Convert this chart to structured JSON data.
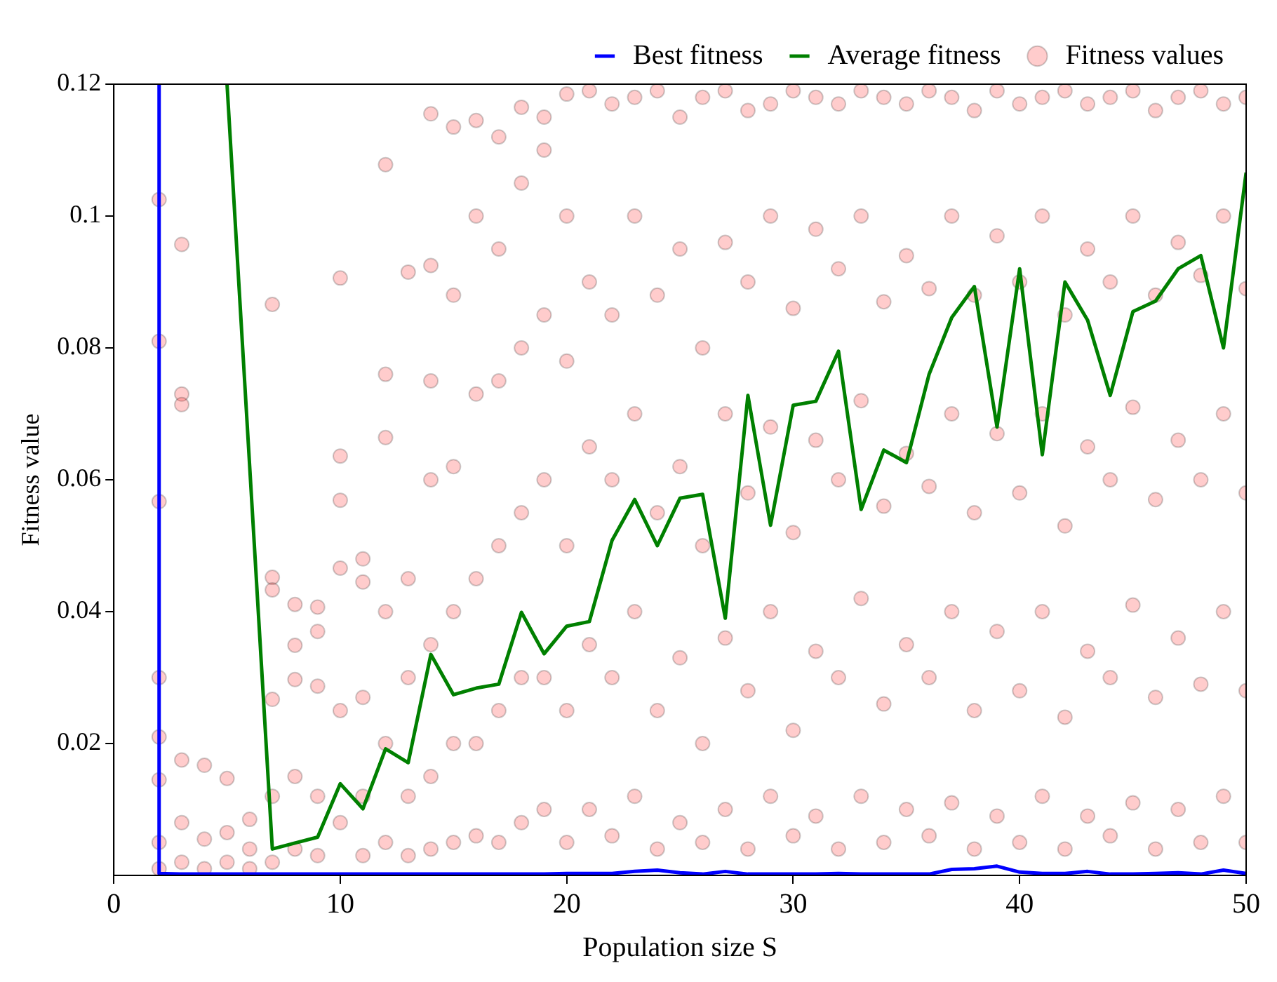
{
  "chart_data": {
    "type": "scatter",
    "xlabel": "Population size S",
    "ylabel": "Fitness value",
    "xlim": [
      0,
      50
    ],
    "ylim": [
      0,
      0.12
    ],
    "xticks": [
      0,
      10,
      20,
      30,
      40,
      50
    ],
    "yticks": [
      0.02,
      0.04,
      0.06,
      0.08,
      0.1,
      0.12
    ],
    "grid": false,
    "legend": "top right",
    "series": [
      {
        "name": "Best fitness",
        "type": "line",
        "color": "#0000ff",
        "marker": "none",
        "x": [
          2,
          2,
          3,
          4,
          5,
          6,
          7,
          8,
          9,
          10,
          11,
          12,
          13,
          14,
          15,
          16,
          17,
          18,
          19,
          20,
          21,
          22,
          23,
          24,
          25,
          26,
          27,
          28,
          29,
          30,
          31,
          32,
          33,
          34,
          35,
          36,
          37,
          38,
          39,
          40,
          41,
          42,
          43,
          44,
          45,
          46,
          47,
          48,
          49,
          50
        ],
        "values": [
          0.12,
          0.0003,
          0.0002,
          0.0002,
          0.0002,
          0.0002,
          0.0002,
          0.0002,
          0.0002,
          0.0002,
          0.0002,
          0.0002,
          0.0002,
          0.0002,
          0.0002,
          0.0002,
          0.0002,
          0.0002,
          0.0002,
          0.0003,
          0.0003,
          0.0003,
          0.0006,
          0.0008,
          0.0004,
          0.0002,
          0.0006,
          0.0002,
          0.0002,
          0.0002,
          0.0002,
          0.0003,
          0.0002,
          0.0002,
          0.0002,
          0.0002,
          0.0009,
          0.001,
          0.0014,
          0.0005,
          0.0003,
          0.0003,
          0.0006,
          0.0002,
          0.0002,
          0.0003,
          0.0004,
          0.0002,
          0.0008,
          0.0003
        ]
      },
      {
        "name": "Average fitness",
        "type": "line",
        "color": "#008000",
        "marker": "none",
        "x": [
          5,
          7,
          8,
          9,
          10,
          11,
          12,
          13,
          14,
          15,
          16,
          17,
          18,
          19,
          20,
          21,
          22,
          23,
          24,
          25,
          26,
          27,
          28,
          29,
          30,
          31,
          32,
          33,
          34,
          35,
          36,
          37,
          38,
          39,
          40,
          41,
          42,
          43,
          44,
          45,
          46,
          47,
          48,
          49,
          50
        ],
        "values": [
          0.12,
          0.004,
          0.0049,
          0.0058,
          0.0139,
          0.0101,
          0.0192,
          0.0171,
          0.0335,
          0.0274,
          0.0284,
          0.029,
          0.0399,
          0.0336,
          0.0378,
          0.0385,
          0.0508,
          0.057,
          0.05,
          0.0572,
          0.0578,
          0.039,
          0.0728,
          0.0531,
          0.0713,
          0.0719,
          0.0795,
          0.0555,
          0.0645,
          0.0626,
          0.076,
          0.0846,
          0.0893,
          0.068,
          0.092,
          0.0638,
          0.09,
          0.0842,
          0.0728,
          0.0855,
          0.0871,
          0.092,
          0.094,
          0.08,
          0.1066
        ]
      },
      {
        "name": "Fitness values",
        "color": "#ff0000",
        "marker": "circle",
        "x": [
          2,
          2,
          2,
          2,
          2,
          2,
          2,
          2,
          3,
          3,
          3,
          3,
          3,
          3,
          4,
          4,
          4,
          5,
          5,
          5,
          6,
          6,
          6,
          7,
          7,
          7,
          7,
          7,
          7,
          8,
          8,
          8,
          8,
          8,
          9,
          9,
          9,
          9,
          9,
          10,
          10,
          10,
          10,
          10,
          10,
          11,
          11,
          11,
          11,
          11,
          12,
          12,
          12,
          12,
          12,
          12,
          13,
          13,
          13,
          13,
          13,
          14,
          14,
          14,
          14,
          14,
          14,
          14,
          15,
          15,
          15,
          15,
          15,
          15,
          16,
          16,
          16,
          16,
          16,
          16,
          17,
          17,
          17,
          17,
          17,
          17,
          18,
          18,
          18,
          18,
          18,
          18,
          19,
          19,
          19,
          19,
          19,
          19,
          20,
          20,
          20,
          20,
          20,
          20,
          21,
          21,
          21,
          21,
          21,
          22,
          22,
          22,
          22,
          22,
          23,
          23,
          23,
          23,
          23,
          24,
          24,
          24,
          24,
          24,
          25,
          25,
          25,
          25,
          25,
          26,
          26,
          26,
          26,
          26,
          27,
          27,
          27,
          27,
          27,
          28,
          28,
          28,
          28,
          28,
          29,
          29,
          29,
          29,
          29,
          30,
          30,
          30,
          30,
          30,
          31,
          31,
          31,
          31,
          31,
          32,
          32,
          32,
          32,
          32,
          33,
          33,
          33,
          33,
          33,
          34,
          34,
          34,
          34,
          34,
          35,
          35,
          35,
          35,
          35,
          36,
          36,
          36,
          36,
          36,
          37,
          37,
          37,
          37,
          37,
          38,
          38,
          38,
          38,
          38,
          39,
          39,
          39,
          39,
          39,
          40,
          40,
          40,
          40,
          40,
          41,
          41,
          41,
          41,
          41,
          42,
          42,
          42,
          42,
          42,
          43,
          43,
          43,
          43,
          43,
          44,
          44,
          44,
          44,
          44,
          45,
          45,
          45,
          45,
          45,
          46,
          46,
          46,
          46,
          46,
          47,
          47,
          47,
          47,
          47,
          48,
          48,
          48,
          48,
          48,
          49,
          49,
          49,
          49,
          49,
          50,
          50,
          50,
          50,
          50
        ],
        "values": [
          0.1025,
          0.081,
          0.0567,
          0.03,
          0.021,
          0.0145,
          0.005,
          0.001,
          0.0957,
          0.073,
          0.0714,
          0.0175,
          0.008,
          0.002,
          0.0167,
          0.0055,
          0.001,
          0.0147,
          0.0065,
          0.002,
          0.0085,
          0.004,
          0.001,
          0.0866,
          0.0452,
          0.0433,
          0.0267,
          0.012,
          0.002,
          0.0411,
          0.0349,
          0.0297,
          0.015,
          0.004,
          0.0407,
          0.037,
          0.0287,
          0.012,
          0.003,
          0.0906,
          0.0636,
          0.0569,
          0.0466,
          0.025,
          0.008,
          0.048,
          0.0445,
          0.027,
          0.012,
          0.003,
          0.1078,
          0.076,
          0.0664,
          0.04,
          0.02,
          0.005,
          0.0915,
          0.045,
          0.03,
          0.012,
          0.003,
          0.1155,
          0.0925,
          0.075,
          0.06,
          0.035,
          0.015,
          0.004,
          0.1135,
          0.088,
          0.062,
          0.04,
          0.02,
          0.005,
          0.1145,
          0.1,
          0.073,
          0.045,
          0.02,
          0.006,
          0.112,
          0.095,
          0.075,
          0.05,
          0.025,
          0.005,
          0.1165,
          0.105,
          0.08,
          0.055,
          0.03,
          0.008,
          0.115,
          0.11,
          0.085,
          0.06,
          0.03,
          0.01,
          0.1185,
          0.1,
          0.078,
          0.05,
          0.025,
          0.005,
          0.119,
          0.09,
          0.065,
          0.035,
          0.01,
          0.117,
          0.085,
          0.06,
          0.03,
          0.006,
          0.118,
          0.1,
          0.07,
          0.04,
          0.012,
          0.119,
          0.088,
          0.055,
          0.025,
          0.004,
          0.115,
          0.095,
          0.062,
          0.033,
          0.008,
          0.118,
          0.08,
          0.05,
          0.02,
          0.005,
          0.119,
          0.096,
          0.07,
          0.036,
          0.01,
          0.116,
          0.09,
          0.058,
          0.028,
          0.004,
          0.117,
          0.1,
          0.068,
          0.04,
          0.012,
          0.119,
          0.086,
          0.052,
          0.022,
          0.006,
          0.118,
          0.098,
          0.066,
          0.034,
          0.009,
          0.117,
          0.092,
          0.06,
          0.03,
          0.004,
          0.119,
          0.1,
          0.072,
          0.042,
          0.012,
          0.118,
          0.087,
          0.056,
          0.026,
          0.005,
          0.117,
          0.094,
          0.064,
          0.035,
          0.01,
          0.119,
          0.089,
          0.059,
          0.03,
          0.006,
          0.118,
          0.1,
          0.07,
          0.04,
          0.011,
          0.116,
          0.088,
          0.055,
          0.025,
          0.004,
          0.119,
          0.097,
          0.067,
          0.037,
          0.009,
          0.117,
          0.09,
          0.058,
          0.028,
          0.005,
          0.118,
          0.1,
          0.07,
          0.04,
          0.012,
          0.119,
          0.085,
          0.053,
          0.024,
          0.004,
          0.117,
          0.095,
          0.065,
          0.034,
          0.009,
          0.118,
          0.09,
          0.06,
          0.03,
          0.006,
          0.119,
          0.1,
          0.071,
          0.041,
          0.011,
          0.116,
          0.088,
          0.057,
          0.027,
          0.004,
          0.118,
          0.096,
          0.066,
          0.036,
          0.01,
          0.119,
          0.091,
          0.06,
          0.029,
          0.005,
          0.117,
          0.1,
          0.07,
          0.04,
          0.012,
          0.118,
          0.089,
          0.058,
          0.028,
          0.005
        ]
      }
    ]
  }
}
